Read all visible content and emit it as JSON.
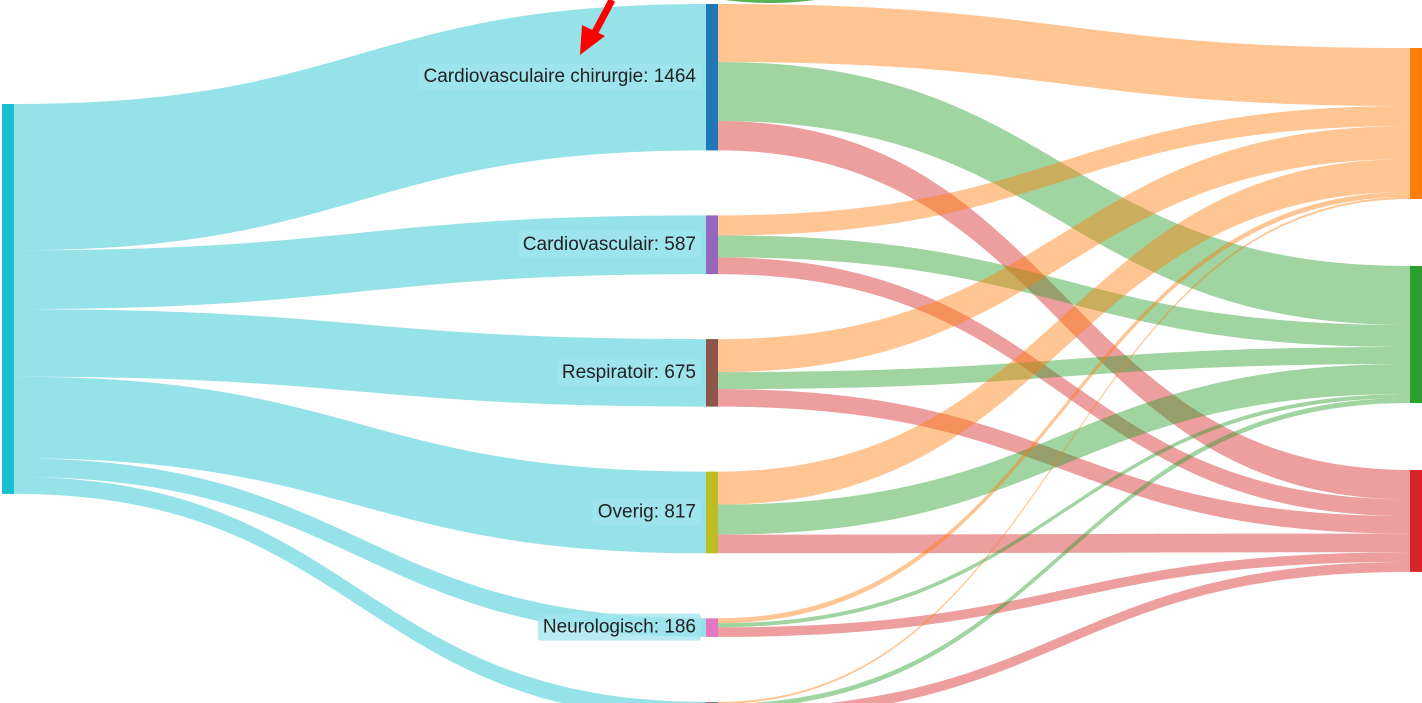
{
  "chart_data": {
    "type": "sankey",
    "nodes": [
      {
        "color": "#17becf"
      },
      {
        "label": "Cardiovasculaire chirurgie: 1464",
        "value": 1464,
        "color": "#1f77b4"
      },
      {
        "label": "Cardiovasculair: 587",
        "value": 587,
        "color": "#9467bd"
      },
      {
        "label": "Respiratoir: 675",
        "value": 675,
        "color": "#8c564b"
      },
      {
        "label": "Overig: 817",
        "value": 817,
        "color": "#bcbd22"
      },
      {
        "label": "Neurologisch: 186",
        "value": 186,
        "color": "#e377c2"
      },
      {
        "label": null,
        "color": "#7f7f7f"
      },
      {
        "color": "#ff7f0e"
      },
      {
        "color": "#2ca02c"
      },
      {
        "color": "#d62728"
      }
    ],
    "links": [
      {
        "source": 0,
        "target": 1,
        "value": 1464
      },
      {
        "source": 0,
        "target": 2,
        "value": 587
      },
      {
        "source": 0,
        "target": 3,
        "value": 675
      },
      {
        "source": 0,
        "target": 4,
        "value": 817
      },
      {
        "source": 0,
        "target": 5,
        "value": 186
      },
      {
        "source": 0,
        "target": 6,
        "value": 170
      },
      {
        "source": 1,
        "target": 7,
        "value": 580
      },
      {
        "source": 1,
        "target": 8,
        "value": 590
      },
      {
        "source": 1,
        "target": 9,
        "value": 294
      },
      {
        "source": 2,
        "target": 7,
        "value": 200
      },
      {
        "source": 2,
        "target": 8,
        "value": 220
      },
      {
        "source": 2,
        "target": 9,
        "value": 167
      },
      {
        "source": 3,
        "target": 7,
        "value": 330
      },
      {
        "source": 3,
        "target": 8,
        "value": 170
      },
      {
        "source": 3,
        "target": 9,
        "value": 175
      },
      {
        "source": 4,
        "target": 7,
        "value": 330
      },
      {
        "source": 4,
        "target": 8,
        "value": 300
      },
      {
        "source": 4,
        "target": 9,
        "value": 187
      },
      {
        "source": 5,
        "target": 7,
        "value": 50
      },
      {
        "source": 5,
        "target": 8,
        "value": 40
      },
      {
        "source": 5,
        "target": 9,
        "value": 96
      },
      {
        "source": 6,
        "target": 7,
        "value": 20
      },
      {
        "source": 6,
        "target": 8,
        "value": 50
      },
      {
        "source": 6,
        "target": 9,
        "value": 100
      }
    ]
  }
}
